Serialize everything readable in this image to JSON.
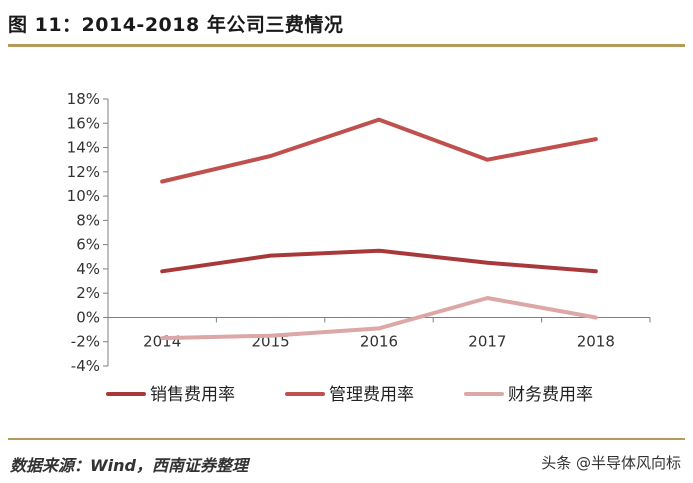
{
  "header": {
    "title": "图 11：2014-2018 年公司三费情况"
  },
  "footer": {
    "source": "数据来源：Wind，西南证券整理",
    "watermark": "头条 @半导体风向标"
  },
  "chart_data": {
    "type": "line",
    "x": [
      "2014",
      "2015",
      "2016",
      "2017",
      "2018"
    ],
    "ylim": [
      -4,
      18
    ],
    "yticks": [
      -4,
      -2,
      0,
      2,
      4,
      6,
      8,
      10,
      12,
      14,
      16,
      18
    ],
    "ytick_labels": [
      "-4%",
      "-2%",
      "0%",
      "2%",
      "4%",
      "6%",
      "8%",
      "10%",
      "12%",
      "14%",
      "16%",
      "18%"
    ],
    "grid": false,
    "legend_position": "bottom",
    "series": [
      {
        "name": "销售费用率",
        "values": [
          3.8,
          5.1,
          5.5,
          4.5,
          3.8
        ],
        "color": "#a8393a"
      },
      {
        "name": "管理费用率",
        "values": [
          11.2,
          13.3,
          16.3,
          13.0,
          14.7
        ],
        "color": "#c0504d"
      },
      {
        "name": "财务费用率",
        "values": [
          -1.7,
          -1.5,
          -0.9,
          1.6,
          0.0
        ],
        "color": "#dca7a7"
      }
    ]
  }
}
